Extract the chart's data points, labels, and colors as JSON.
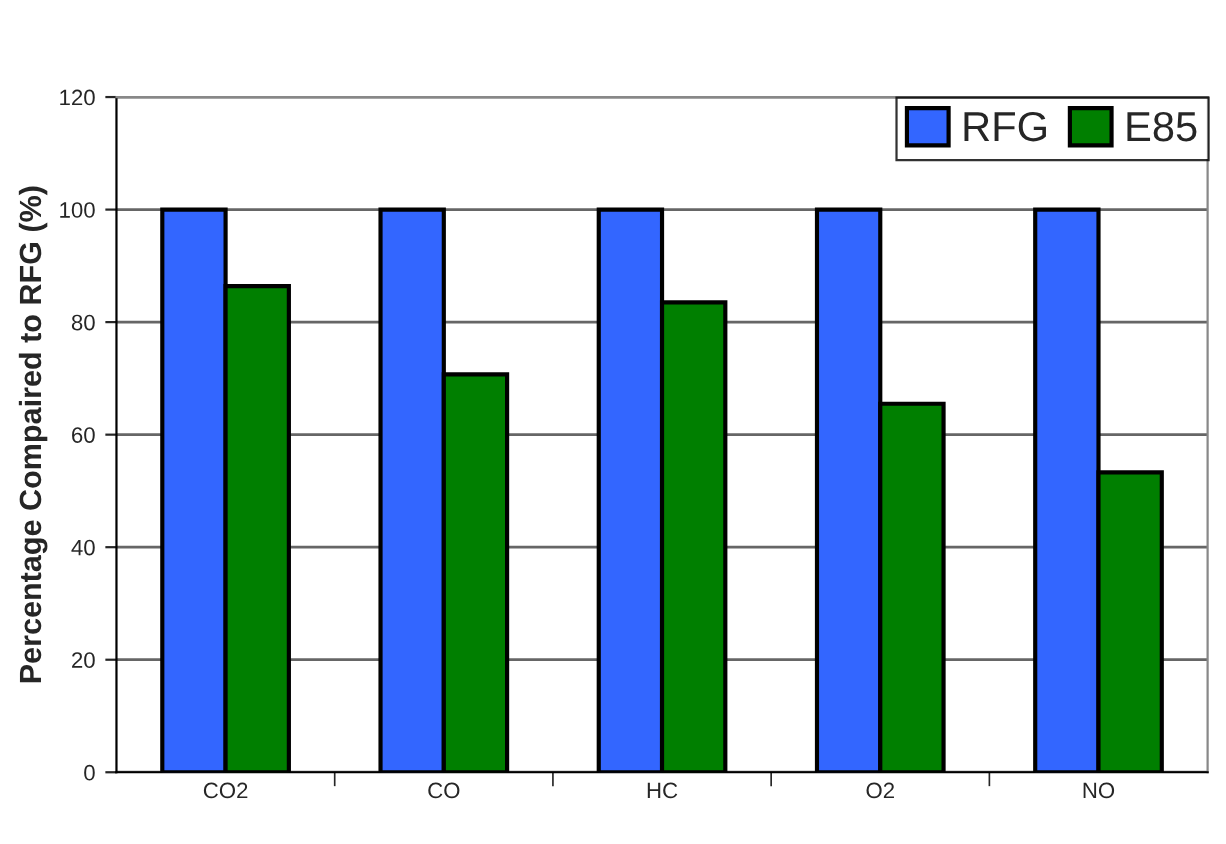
{
  "chart_data": {
    "type": "bar",
    "ylabel": "Percentage Compaired to RFG (%)",
    "categories": [
      "CO2",
      "CO",
      "HC",
      "O2",
      "NO"
    ],
    "series": [
      {
        "name": "RFG",
        "color": "#3366ff",
        "values": [
          100,
          100,
          100,
          100,
          100
        ]
      },
      {
        "name": "E85",
        "color": "#007f00",
        "values": [
          86.4,
          70.7,
          83.5,
          65.5,
          53.3
        ]
      }
    ],
    "ylim": [
      0,
      120
    ],
    "yticks": [
      0,
      20,
      40,
      60,
      80,
      100,
      120
    ],
    "grid": "y",
    "legend": "top right"
  }
}
